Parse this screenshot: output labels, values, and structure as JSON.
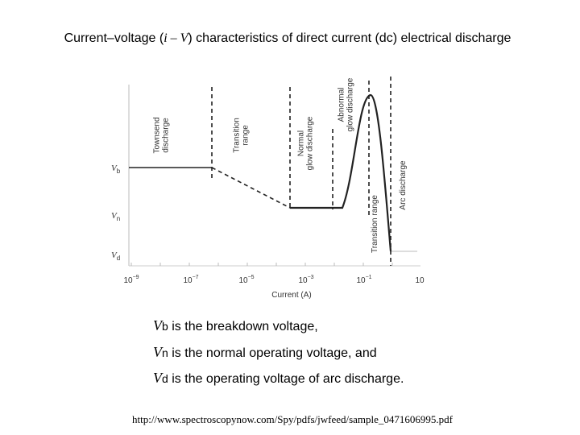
{
  "title": {
    "pre": "Current–voltage (",
    "symbol": "i – V",
    "post": ") characteristics of direct current (dc) electrical discharge"
  },
  "figure": {
    "y_labels": [
      {
        "symbol": "V",
        "sub": "b"
      },
      {
        "symbol": "V",
        "sub": "n"
      },
      {
        "symbol": "V",
        "sub": "d"
      }
    ],
    "x_ticks": [
      {
        "base": "10",
        "exp": "−9"
      },
      {
        "base": "10",
        "exp": "−7"
      },
      {
        "base": "10",
        "exp": "−5"
      },
      {
        "base": "10",
        "exp": "−3"
      },
      {
        "base": "10",
        "exp": "−1"
      },
      {
        "base": "10"
      }
    ],
    "x_label": "Current (A)",
    "regions": [
      [
        "Townsend",
        "discharge"
      ],
      [
        "Transition",
        "range"
      ],
      [
        "Normal",
        "glow discharge"
      ],
      [
        "Abnormal",
        "glow discharge"
      ],
      [
        "Transition range"
      ],
      [
        "Arc discharge"
      ]
    ]
  },
  "notes": [
    {
      "symbol": "V",
      "sub": "b",
      "text": " is the breakdown voltage,"
    },
    {
      "symbol": "V",
      "sub": "n",
      "text": " is the normal operating voltage, and"
    },
    {
      "symbol": "V",
      "sub": "d",
      "text": " is the operating voltage of arc discharge."
    }
  ],
  "source": "http://www.spectroscopynow.com/Spy/pdfs/jwfeed/sample_0471606995.pdf"
}
